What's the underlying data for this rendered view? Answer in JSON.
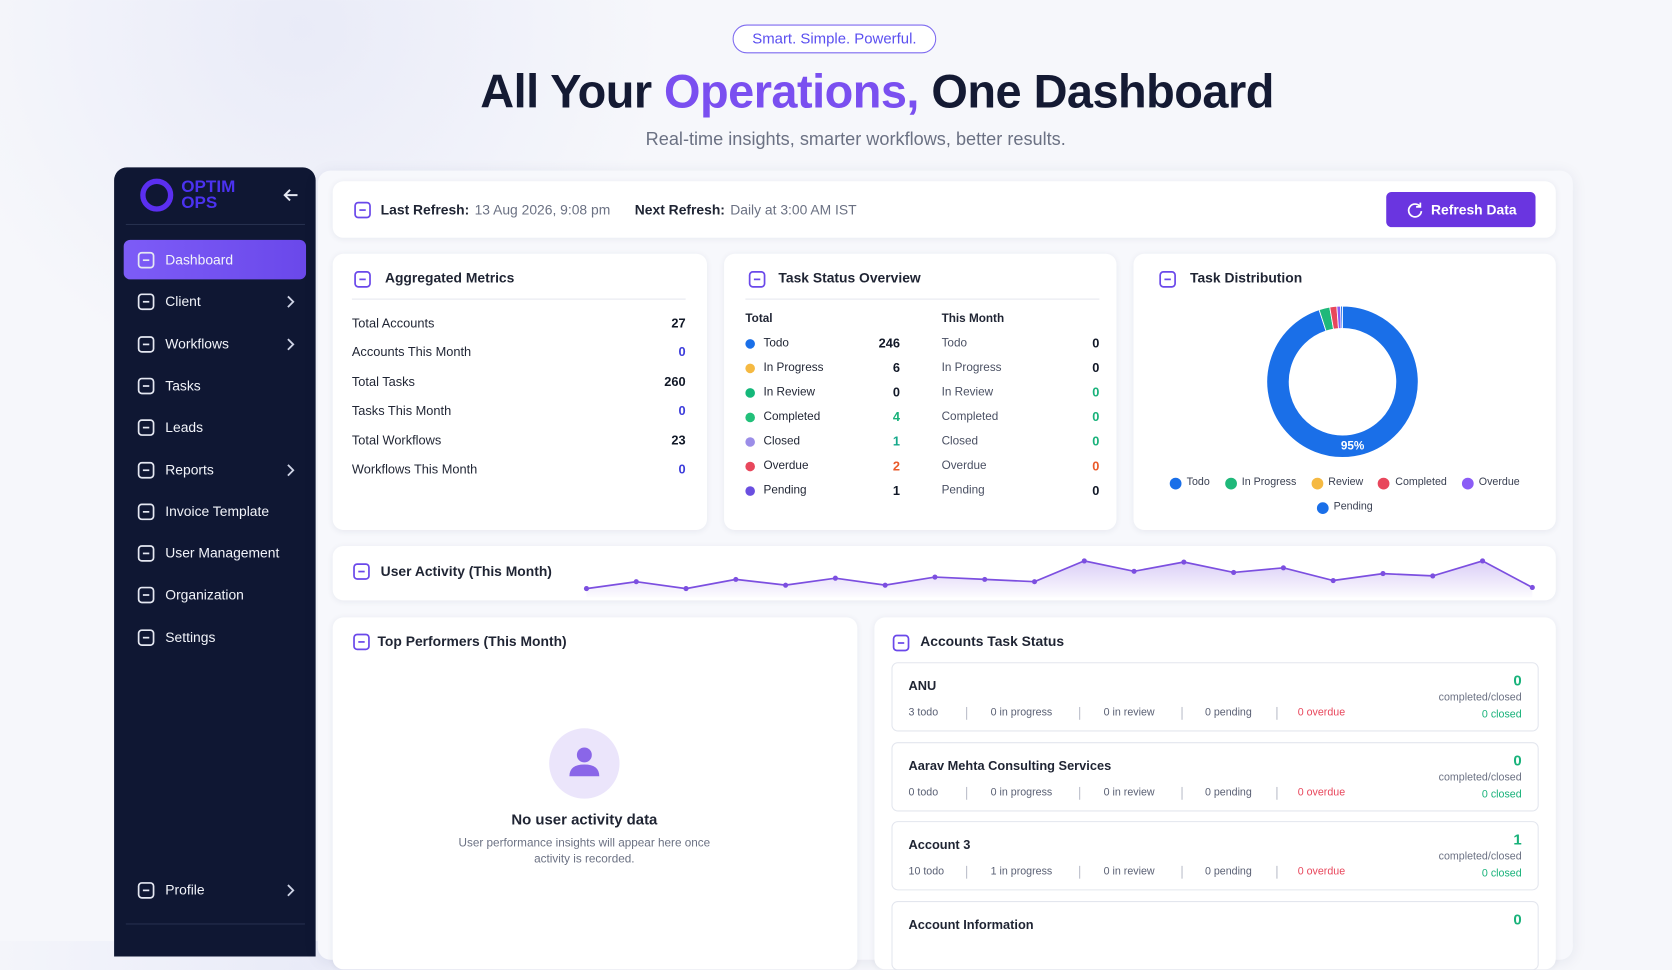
{
  "header": {
    "badge": "Smart. Simple. Powerful.",
    "title_pre": "All Your ",
    "title_highlight": "Operations,",
    "title_post": " One Dashboard",
    "subtitle": "Real-time insights, smarter workflows, better results."
  },
  "sidebar": {
    "logo_line1": "OPTIM",
    "logo_line2": "OPS",
    "nav": [
      {
        "label": "Dashboard",
        "active": true
      },
      {
        "label": "Client",
        "expandable": true
      },
      {
        "label": "Workflows",
        "expandable": true
      },
      {
        "label": "Tasks"
      },
      {
        "label": "Leads"
      },
      {
        "label": "Reports",
        "expandable": true
      },
      {
        "label": "Invoice Template"
      },
      {
        "label": "User Management"
      },
      {
        "label": "Organization"
      },
      {
        "label": "Settings"
      }
    ],
    "profile": {
      "label": "Profile",
      "expandable": true
    }
  },
  "refresh_bar": {
    "last_label": "Last Refresh:",
    "last_value": "13 Aug 2026, 9:08 pm",
    "next_label": "Next Refresh:",
    "next_value": "Daily at 3:00 AM IST",
    "button": "Refresh Data"
  },
  "aggregated_metrics": {
    "title": "Aggregated Metrics",
    "rows": [
      {
        "label": "Total Accounts",
        "value": 27,
        "value_color": "#111827"
      },
      {
        "label": "Accounts This Month",
        "value": 0,
        "value_color": "#3b3bdb"
      },
      {
        "label": "Total Tasks",
        "value": 260,
        "value_color": "#111827"
      },
      {
        "label": "Tasks This Month",
        "value": 0,
        "value_color": "#3b3bdb"
      },
      {
        "label": "Total Workflows",
        "value": 23,
        "value_color": "#111827"
      },
      {
        "label": "Workflows This Month",
        "value": 0,
        "value_color": "#3b3bdb"
      }
    ]
  },
  "task_status": {
    "title": "Task Status Overview",
    "total_heading": "Total",
    "month_heading": "This Month",
    "rows": [
      {
        "label": "Todo",
        "color": "#1a6fe8",
        "total": 246,
        "total_color": "#111827",
        "month": 0,
        "month_color": "#111827"
      },
      {
        "label": "In Progress",
        "color": "#f5b942",
        "total": 6,
        "total_color": "#111827",
        "month": 0,
        "month_color": "#111827"
      },
      {
        "label": "In Review",
        "color": "#14b87a",
        "total": 0,
        "total_color": "#111827",
        "month": 0,
        "month_color": "#18b27a"
      },
      {
        "label": "Completed",
        "color": "#22c07a",
        "total": 4,
        "total_color": "#18b27a",
        "month": 0,
        "month_color": "#18b27a"
      },
      {
        "label": "Closed",
        "color": "#9b8de8",
        "total": 1,
        "total_color": "#14a88a",
        "month": 0,
        "month_color": "#18b27a"
      },
      {
        "label": "Overdue",
        "color": "#e8475c",
        "total": 2,
        "total_color": "#ea5a2a",
        "month": 0,
        "month_color": "#ea5a2a"
      },
      {
        "label": "Pending",
        "color": "#6a4fe0",
        "total": 1,
        "total_color": "#111827",
        "month": 0,
        "month_color": "#111827"
      }
    ]
  },
  "task_distribution": {
    "title": "Task Distribution",
    "chart": {
      "type": "pie",
      "categories": [
        "Todo",
        "In Progress",
        "Review",
        "Completed",
        "Overdue",
        "Pending"
      ],
      "values": [
        95,
        2.3,
        0,
        1.5,
        0.8,
        0.4
      ],
      "value_labels": [
        "95%",
        null,
        null,
        null,
        null,
        null
      ],
      "colors": [
        "#1a6fe8",
        "#1fb87a",
        "#f5b942",
        "#e8475c",
        "#8b5cf6",
        "#1a6fe8"
      ]
    }
  },
  "user_activity": {
    "title": "User Activity (This Month)",
    "chart": {
      "type": "line",
      "color": "#7c4fe0",
      "values": [
        0,
        6,
        0,
        8,
        3,
        9,
        3,
        10,
        8,
        6,
        24,
        15,
        23,
        14,
        18,
        7,
        13,
        11,
        24,
        1
      ]
    }
  },
  "top_performers": {
    "title": "Top Performers (This Month)",
    "empty_title": "No user activity data",
    "empty_text": "User performance insights will appear here once activity is recorded."
  },
  "accounts_task_status": {
    "title": "Accounts Task Status",
    "completed_label": "completed/closed",
    "accounts": [
      {
        "name": "ANU",
        "todo": "3 todo",
        "in_progress": "0 in progress",
        "in_review": "0 in review",
        "pending": "0 pending",
        "overdue": "0 overdue",
        "completed": 0,
        "closed": "0 closed"
      },
      {
        "name": "Aarav Mehta Consulting Services",
        "todo": "0 todo",
        "in_progress": "0 in progress",
        "in_review": "0 in review",
        "pending": "0 pending",
        "overdue": "0 overdue",
        "completed": 0,
        "closed": "0 closed"
      },
      {
        "name": "Account 3",
        "todo": "10 todo",
        "in_progress": "1 in progress",
        "in_review": "0 in review",
        "pending": "0 pending",
        "overdue": "0 overdue",
        "completed": 1,
        "closed": "0 closed"
      },
      {
        "name": "Account Information",
        "completed": 0
      }
    ]
  }
}
